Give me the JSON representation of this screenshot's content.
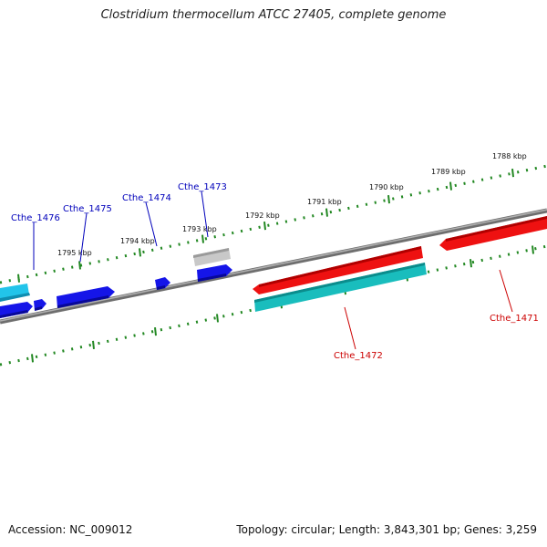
{
  "title": "Clostridium thermocellum ATCC 27405, complete genome",
  "accession": "Accession: NC_009012",
  "topology": "Topology: circular; Length: 3,843,301 bp; Genes: 3,259",
  "colors": {
    "forward_cds": "#1515e8",
    "forward_light": "#22c4ea",
    "reverse_cds": "#ee1111",
    "reverse_teal": "#19bdbd",
    "other_feature": "#bbbbbb",
    "backbone": "#808080",
    "ticks": "#228822",
    "forward_label": "#0000bb",
    "reverse_label": "#cc0000"
  },
  "ticks": [
    {
      "label": "1788 kbp",
      "kbp": 1788
    },
    {
      "label": "1789 kbp",
      "kbp": 1789
    },
    {
      "label": "1790 kbp",
      "kbp": 1790
    },
    {
      "label": "1791 kbp",
      "kbp": 1791
    },
    {
      "label": "1792 kbp",
      "kbp": 1792
    },
    {
      "label": "1793 kbp",
      "kbp": 1793
    },
    {
      "label": "1794 kbp",
      "kbp": 1794
    },
    {
      "label": "1795 kbp",
      "kbp": 1795
    }
  ],
  "genes": [
    {
      "name": "Cthe_1476",
      "strand": "forward"
    },
    {
      "name": "Cthe_1475",
      "strand": "forward"
    },
    {
      "name": "Cthe_1474",
      "strand": "forward"
    },
    {
      "name": "Cthe_1473",
      "strand": "forward"
    },
    {
      "name": "Cthe_1472",
      "strand": "reverse"
    },
    {
      "name": "Cthe_1471",
      "strand": "reverse"
    }
  ]
}
